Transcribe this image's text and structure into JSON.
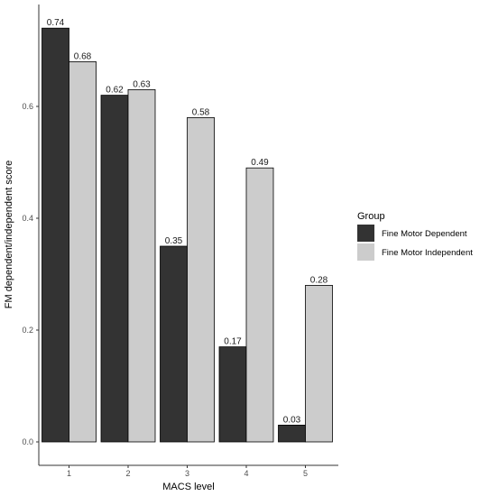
{
  "chart_data": {
    "type": "bar",
    "title": "",
    "xlabel": "MACS level",
    "ylabel": "FM dependent/independent score",
    "categories": [
      "1",
      "2",
      "3",
      "4",
      "5"
    ],
    "ylim": [
      0,
      0.74
    ],
    "yticks": [
      0.0,
      0.2,
      0.4,
      0.6
    ],
    "ytick_labels": [
      "0.0",
      "0.2",
      "0.4",
      "0.6"
    ],
    "grid": false,
    "legend": {
      "title": "Group",
      "placement": "right"
    },
    "series": [
      {
        "name": "Fine Motor Dependent",
        "color": "#333333",
        "values": [
          0.74,
          0.62,
          0.35,
          0.17,
          0.03
        ],
        "labels": [
          "0.74",
          "0.62",
          "0.35",
          "0.17",
          "0.03"
        ]
      },
      {
        "name": "Fine Motor Independent",
        "color": "#cccccc",
        "values": [
          0.68,
          0.63,
          0.58,
          0.49,
          0.28
        ],
        "labels": [
          "0.68",
          "0.63",
          "0.58",
          "0.49",
          "0.28"
        ]
      }
    ]
  }
}
